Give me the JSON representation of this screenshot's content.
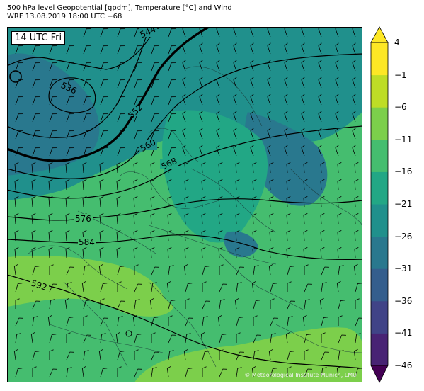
{
  "header": {
    "line1": "500 hPa level Geopotential [gpdm], Temperature [°C] and Wind",
    "line2": "WRF 13.08.2019 18:00 UTC +68"
  },
  "time_label": "14 UTC Fri",
  "copyright": "© Meteorological Institute Munich, LMU",
  "contours": {
    "labels": [
      {
        "value": "544"
      },
      {
        "value": "536"
      },
      {
        "value": "552"
      },
      {
        "value": "560"
      },
      {
        "value": "568"
      },
      {
        "value": "576"
      },
      {
        "value": "584"
      },
      {
        "value": "592"
      }
    ]
  },
  "colorbar": {
    "ticks": [
      "4",
      "−1",
      "−6",
      "−11",
      "−16",
      "−21",
      "−26",
      "−31",
      "−36",
      "−41",
      "−46"
    ],
    "colors": [
      "#440154",
      "#482374",
      "#404387",
      "#345e8d",
      "#29788e",
      "#20908c",
      "#22a785",
      "#45bd6f",
      "#7ccf4b",
      "#bedd26",
      "#fde725"
    ]
  },
  "palette": {
    "c_m26": "#29788e",
    "c_m21": "#20908c",
    "c_m16": "#22a785",
    "c_m11": "#45bd6f",
    "c_m6": "#7ccf4b",
    "c_m1": "#bedd26"
  }
}
